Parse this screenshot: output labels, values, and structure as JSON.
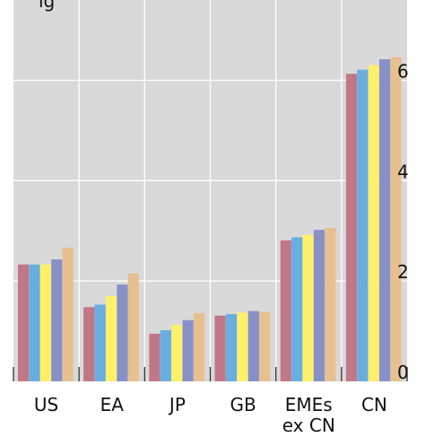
{
  "chart_data": {
    "type": "bar",
    "title": "",
    "top_text": "ig",
    "xlabel": "",
    "ylabel": "",
    "ylim": [
      0,
      7.6
    ],
    "yticks": [
      "0",
      "2",
      "4",
      "6"
    ],
    "ytick_values": [
      0,
      2,
      4,
      6
    ],
    "y_axis_side": "right",
    "grid": true,
    "legend": "none",
    "categories": [
      "US",
      "EA",
      "JP",
      "GB",
      "EMEs\nex CN",
      "CN"
    ],
    "series": [
      {
        "color": "#c07888",
        "values": [
          2.33,
          1.48,
          0.95,
          1.31,
          2.81,
          6.13
        ]
      },
      {
        "color": "#6aaee0",
        "values": [
          2.33,
          1.53,
          1.02,
          1.34,
          2.87,
          6.21
        ]
      },
      {
        "color": "#fff06a",
        "values": [
          2.33,
          1.7,
          1.12,
          1.37,
          2.92,
          6.3
        ]
      },
      {
        "color": "#8890c8",
        "values": [
          2.43,
          1.93,
          1.22,
          1.4,
          3.02,
          6.42
        ]
      },
      {
        "color": "#e6c08e",
        "values": [
          2.66,
          2.15,
          1.36,
          1.38,
          3.06,
          6.46
        ]
      }
    ]
  }
}
